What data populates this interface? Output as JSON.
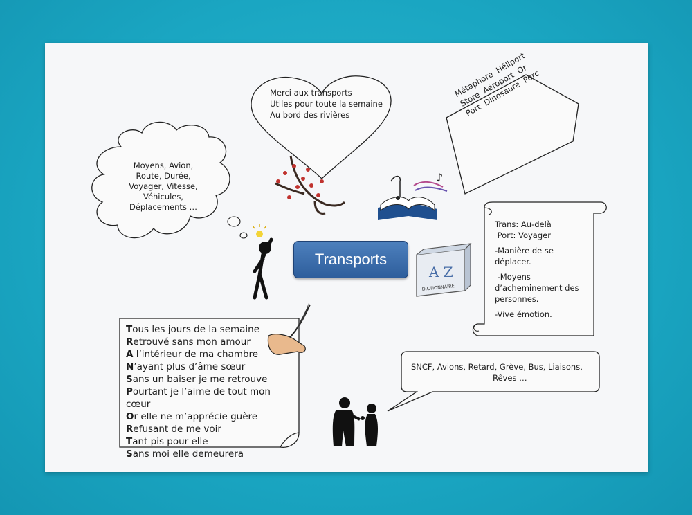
{
  "title": "Transports",
  "cloud": {
    "lines": [
      "Moyens, Avion,",
      "Route, Durée,",
      "Voyager, Vitesse,",
      "Véhicules,",
      "Déplacements …"
    ]
  },
  "heart": {
    "lines": [
      "Merci aux transports",
      "Utiles pour toute la semaine",
      "Au bord des rivières"
    ]
  },
  "tag": {
    "lines": [
      "Métaphore  Héliport",
      "Store  Aéroport  Or",
      "Port  Dinosaure  Porc"
    ]
  },
  "scroll": {
    "lines": [
      "Trans: Au-delà",
      " Port: Voyager",
      "",
      "-Manière de se",
      "déplacer.",
      "",
      " -Moyens",
      "d’acheminement des",
      "personnes.",
      "",
      "-Vive émotion."
    ]
  },
  "bubble": {
    "lines": [
      "SNCF, Avions, Retard, Grève, Bus, Liaisons,",
      "Rêves …"
    ]
  },
  "poem": {
    "lines": [
      {
        "first": "T",
        "rest": "ous les jours de la semaine"
      },
      {
        "first": "R",
        "rest": "etrouvé sans mon amour"
      },
      {
        "first": "A",
        "rest": " l’intérieur de ma chambre"
      },
      {
        "first": "N",
        "rest": "’ayant plus d’âme sœur"
      },
      {
        "first": "S",
        "rest": "ans un baiser je me retrouve"
      },
      {
        "first": "P",
        "rest": "ourtant je l’aime de tout mon cœur"
      },
      {
        "first": "O",
        "rest": "r elle ne m’apprécie guère"
      },
      {
        "first": "R",
        "rest": "efusant de me voir"
      },
      {
        "first": "T",
        "rest": "ant pis pour elle"
      },
      {
        "first": "S",
        "rest": "ans moi elle demeurera"
      }
    ]
  },
  "dictionary_label": "DICTIONNAIRE",
  "book_label": "A Z",
  "colors": {
    "background": "#1aa6c2",
    "paper": "#f6f7f9",
    "title_box": "#3a6aa8"
  }
}
